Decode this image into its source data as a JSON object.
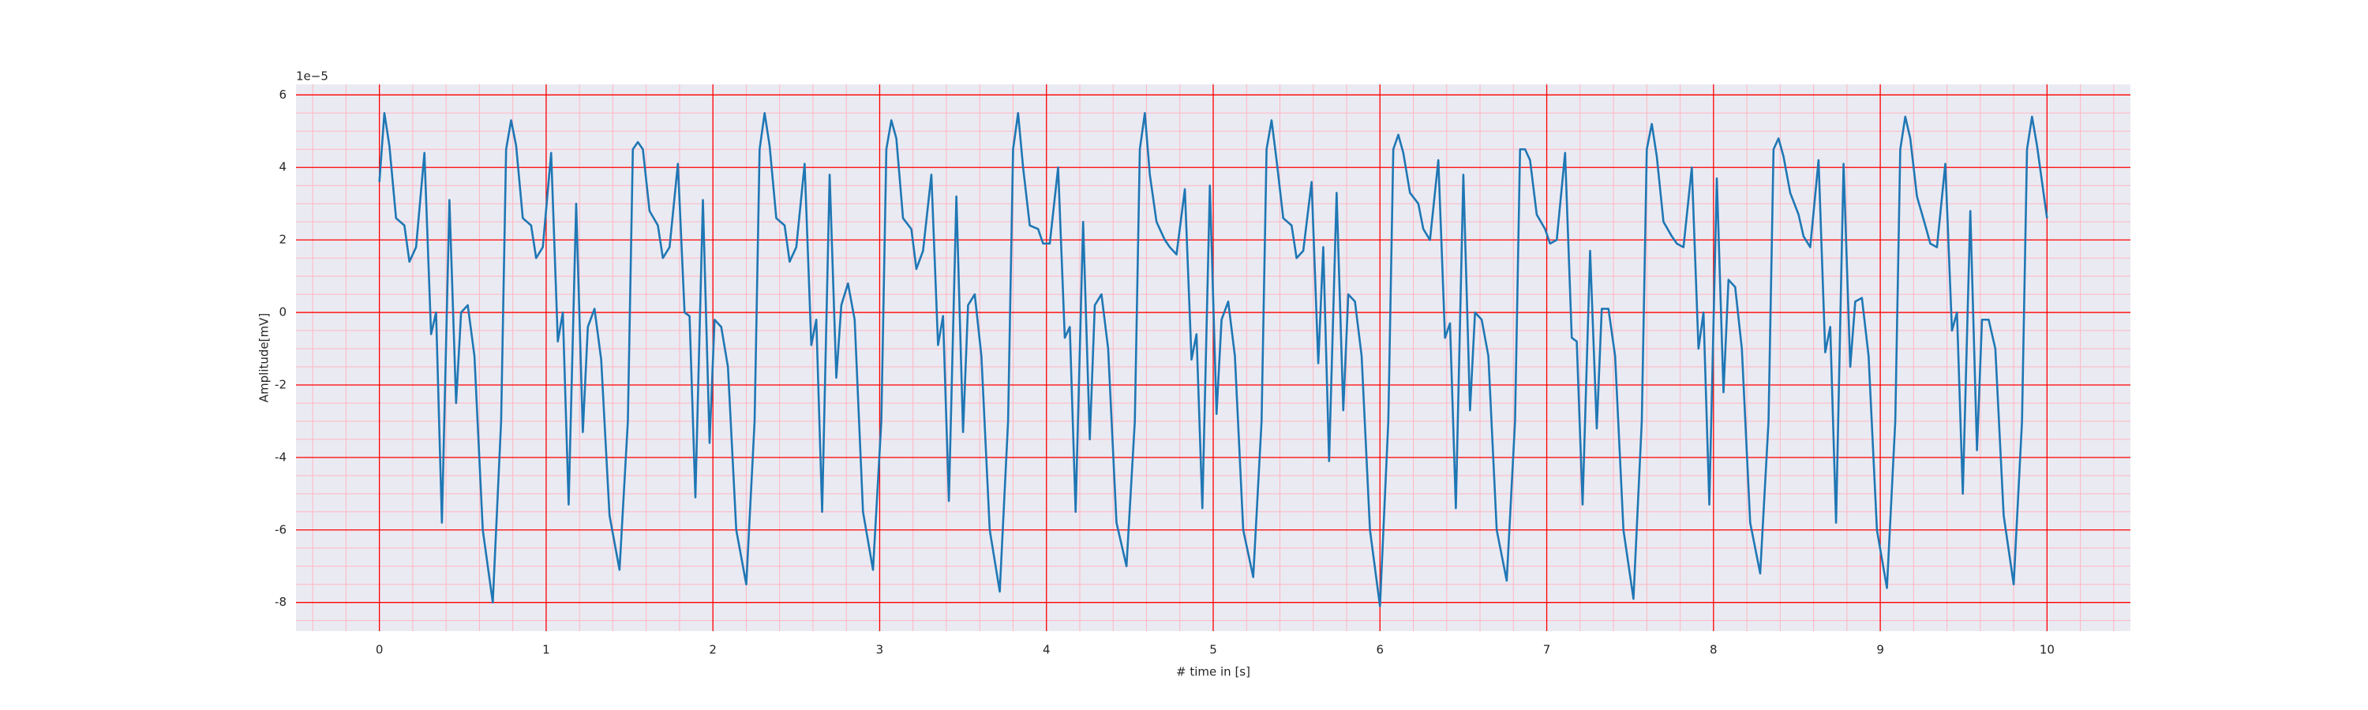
{
  "chart_data": {
    "type": "line",
    "xlabel": "# time in [s]",
    "ylabel": "Amplitude[mV]",
    "y_offset_label": "1e−5",
    "xlim": [
      -0.5,
      10.5
    ],
    "ylim": [
      -8.79,
      6.29
    ],
    "xticks": [
      0,
      1,
      2,
      3,
      4,
      5,
      6,
      7,
      8,
      9,
      10
    ],
    "yticks": [
      -8,
      -6,
      -4,
      -2,
      0,
      2,
      4,
      6
    ],
    "xminorticks": [
      -0.4,
      -0.2,
      0.2,
      0.4,
      0.6,
      0.8,
      1.2,
      1.4,
      1.6,
      1.8,
      2.2,
      2.4,
      2.6,
      2.8,
      3.2,
      3.4,
      3.6,
      3.8,
      4.2,
      4.4,
      4.6,
      4.8,
      5.2,
      5.4,
      5.6,
      5.8,
      6.2,
      6.4,
      6.6,
      6.8,
      7.2,
      7.4,
      7.6,
      7.8,
      8.2,
      8.4,
      8.6,
      8.8,
      9.2,
      9.4,
      9.6,
      9.8,
      10.2,
      10.4
    ],
    "yminorticks": [
      -8.5,
      -7.5,
      -7,
      -6.5,
      -5.5,
      -5,
      -4.5,
      -3.5,
      -3,
      -2.5,
      -1.5,
      -1,
      -0.5,
      0.5,
      1,
      1.5,
      2.5,
      3,
      3.5,
      4.5,
      5,
      5.5
    ],
    "grid": true,
    "grid_color": "#ff0000",
    "minor_grid_color": "#ffb6c1",
    "background": "#eaeaf2",
    "x": [
      0,
      0.03,
      0.06,
      0.1,
      0.15,
      0.18,
      0.22,
      0.27,
      0.31,
      0.34,
      0.375,
      0.42,
      0.46,
      0.49,
      0.53,
      0.57,
      0.62,
      0.68,
      0.73,
      0.76,
      0.79,
      0.82,
      0.86,
      0.91,
      0.94,
      0.98,
      1.03,
      1.07,
      1.1,
      1.135,
      1.18,
      1.22,
      1.25,
      1.29,
      1.33,
      1.38,
      1.44,
      1.49,
      1.52,
      1.55,
      1.58,
      1.62,
      1.67,
      1.7,
      1.74,
      1.79,
      1.83,
      1.86,
      1.895,
      1.94,
      1.98,
      2.01,
      2.05,
      2.09,
      2.14,
      2.2,
      2.25,
      2.28,
      2.31,
      2.34,
      2.38,
      2.43,
      2.46,
      2.5,
      2.55,
      2.59,
      2.62,
      2.655,
      2.7,
      2.74,
      2.77,
      2.81,
      2.85,
      2.9,
      2.96,
      3.01,
      3.04,
      3.07,
      3.1,
      3.14,
      3.19,
      3.22,
      3.26,
      3.31,
      3.35,
      3.38,
      3.415,
      3.46,
      3.5,
      3.53,
      3.57,
      3.61,
      3.66,
      3.72,
      3.77,
      3.8,
      3.83,
      3.86,
      3.9,
      3.95,
      3.98,
      4.02,
      4.07,
      4.11,
      4.14,
      4.175,
      4.22,
      4.26,
      4.29,
      4.33,
      4.37,
      4.42,
      4.48,
      4.53,
      4.56,
      4.59,
      4.62,
      4.66,
      4.71,
      4.74,
      4.78,
      4.83,
      4.87,
      4.9,
      4.935,
      4.98,
      5.02,
      5.05,
      5.09,
      5.13,
      5.18,
      5.24,
      5.29,
      5.32,
      5.35,
      5.38,
      5.42,
      5.47,
      5.5,
      5.54,
      5.59,
      5.63,
      5.66,
      5.695,
      5.74,
      5.78,
      5.81,
      5.85,
      5.89,
      5.94,
      6,
      6.05,
      6.08,
      6.11,
      6.14,
      6.18,
      6.23,
      6.26,
      6.3,
      6.35,
      6.39,
      6.42,
      6.455,
      6.5,
      6.54,
      6.57,
      6.61,
      6.65,
      6.7,
      6.76,
      6.81,
      6.84,
      6.87,
      6.9,
      6.94,
      6.99,
      7.02,
      7.06,
      7.11,
      7.15,
      7.18,
      7.215,
      7.26,
      7.3,
      7.33,
      7.37,
      7.41,
      7.46,
      7.52,
      7.57,
      7.6,
      7.63,
      7.66,
      7.7,
      7.75,
      7.78,
      7.82,
      7.87,
      7.91,
      7.94,
      7.975,
      8.02,
      8.06,
      8.09,
      8.13,
      8.17,
      8.22,
      8.28,
      8.33,
      8.36,
      8.39,
      8.42,
      8.46,
      8.51,
      8.54,
      8.58,
      8.63,
      8.67,
      8.7,
      8.735,
      8.78,
      8.82,
      8.85,
      8.89,
      8.93,
      8.98,
      9.04,
      9.09,
      9.12,
      9.15,
      9.18,
      9.22,
      9.27,
      9.3,
      9.34,
      9.39,
      9.43,
      9.46,
      9.495,
      9.54,
      9.58,
      9.61,
      9.65,
      9.69,
      9.74,
      9.8,
      9.85,
      9.88,
      9.91,
      9.94,
      10.0
    ],
    "series": [
      {
        "color": "#1f77b4",
        "values": [
          3.6,
          5.5,
          4.6,
          2.6,
          2.4,
          1.4,
          1.8,
          4.4,
          -0.6,
          0,
          -5.8,
          3.1,
          -2.5,
          0,
          0.2,
          -1.2,
          -6,
          -8,
          -3,
          4.5,
          5.3,
          4.6,
          2.6,
          2.4,
          1.5,
          1.8,
          4.4,
          -0.8,
          0,
          -5.3,
          3.0,
          -3.3,
          -0.4,
          0.1,
          -1.3,
          -5.6,
          -7.1,
          -3,
          4.5,
          4.7,
          4.5,
          2.8,
          2.4,
          1.5,
          1.8,
          4.1,
          0,
          -0.1,
          -5.1,
          3.1,
          -3.6,
          -0.2,
          -0.4,
          -1.5,
          -6,
          -7.5,
          -3,
          4.5,
          5.5,
          4.6,
          2.6,
          2.4,
          1.4,
          1.8,
          4.1,
          -0.9,
          -0.2,
          -5.5,
          3.8,
          -1.8,
          0.2,
          0.8,
          -0.2,
          -5.5,
          -7.1,
          -3,
          4.5,
          5.3,
          4.8,
          2.6,
          2.3,
          1.2,
          1.7,
          3.8,
          -0.9,
          -0.1,
          -5.2,
          3.2,
          -3.3,
          0.2,
          0.5,
          -1.2,
          -6,
          -7.7,
          -3,
          4.5,
          5.5,
          4.0,
          2.4,
          2.3,
          1.9,
          1.9,
          4.0,
          -0.7,
          -0.4,
          -5.5,
          2.5,
          -3.5,
          0.2,
          0.5,
          -1.0,
          -5.8,
          -7,
          -3,
          4.5,
          5.5,
          3.8,
          2.5,
          2.0,
          1.8,
          1.6,
          3.4,
          -1.3,
          -0.6,
          -5.4,
          3.5,
          -2.8,
          -0.2,
          0.3,
          -1.2,
          -6,
          -7.3,
          -3,
          4.5,
          5.3,
          4.2,
          2.6,
          2.4,
          1.5,
          1.7,
          3.6,
          -1.4,
          1.8,
          -4.1,
          3.3,
          -2.7,
          0.5,
          0.3,
          -1.2,
          -6,
          -8.1,
          -3,
          4.5,
          4.9,
          4.4,
          3.3,
          3.0,
          2.3,
          2.0,
          4.2,
          -0.7,
          -0.3,
          -5.4,
          3.8,
          -2.7,
          0,
          -0.2,
          -1.2,
          -6,
          -7.4,
          -3,
          4.5,
          4.5,
          4.2,
          2.7,
          2.3,
          1.9,
          2.0,
          4.4,
          -0.7,
          -0.8,
          -5.3,
          1.7,
          -3.2,
          0.1,
          0.1,
          -1.2,
          -6,
          -7.9,
          -3,
          4.5,
          5.2,
          4.3,
          2.5,
          2.1,
          1.9,
          1.8,
          4.0,
          -1.0,
          0,
          -5.3,
          3.7,
          -2.2,
          0.9,
          0.7,
          -1.0,
          -5.8,
          -7.2,
          -3,
          4.5,
          4.8,
          4.3,
          3.3,
          2.7,
          2.1,
          1.8,
          4.2,
          -1.1,
          -0.4,
          -5.8,
          4.1,
          -1.5,
          0.3,
          0.4,
          -1.2,
          -6,
          -7.6,
          -3,
          4.5,
          5.4,
          4.8,
          3.2,
          2.4,
          1.9,
          1.8,
          4.1,
          -0.5,
          0,
          -5,
          2.8,
          -3.8,
          -0.2,
          -0.2,
          -1.0,
          -5.6,
          -7.5,
          -3,
          4.5,
          5.4,
          4.6,
          2.6
        ]
      }
    ]
  }
}
